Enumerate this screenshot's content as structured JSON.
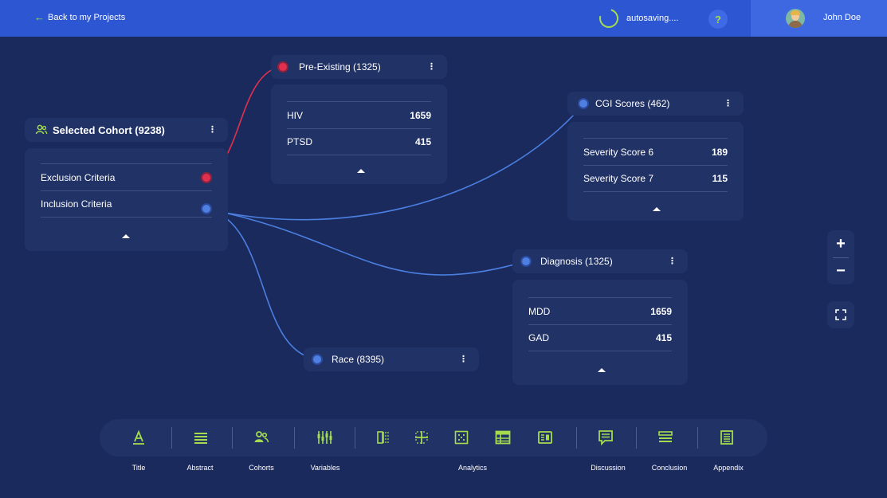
{
  "topbar": {
    "back_label": "Back to my Projects",
    "status_text": "autosaving....",
    "help_label": "?",
    "user_name": "John Doe"
  },
  "colors": {
    "background": "#1b2a5c",
    "topbar": "#2d56d2",
    "card": "#213266",
    "accent": "#a4dc4e",
    "link_blue": "#4a7fe0",
    "link_red": "#e0304e"
  },
  "nodes": {
    "selected_cohort": {
      "title": "Selected Cohort (9238)",
      "rows": [
        "Exclusion Criteria",
        "Inclusion Criteria"
      ]
    },
    "pre_existing": {
      "title": "Pre-Existing (1325)",
      "rows": [
        {
          "label": "HIV",
          "value": "1659"
        },
        {
          "label": "PTSD",
          "value": "415"
        }
      ]
    },
    "cgi_scores": {
      "title": "CGI Scores (462)",
      "rows": [
        {
          "label": "Severity Score 6",
          "value": "189"
        },
        {
          "label": "Severity Score 7",
          "value": "115"
        }
      ]
    },
    "diagnosis": {
      "title": "Diagnosis (1325)",
      "rows": [
        {
          "label": "MDD",
          "value": "1659"
        },
        {
          "label": "GAD",
          "value": "415"
        }
      ]
    },
    "race": {
      "title": "Race (8395)"
    }
  },
  "menu_glyph": "⋮",
  "zoom": {
    "in_label": "+",
    "out_label": "−"
  },
  "toolbar": {
    "items": [
      {
        "label": "Title",
        "icon": "text-format-icon"
      },
      {
        "label": "Abstract",
        "icon": "lines-icon"
      },
      {
        "label": "Cohorts",
        "icon": "people-icon"
      },
      {
        "label": "Variables",
        "icon": "sliders-icon"
      },
      {
        "label": "Analytics",
        "icon": "analytics-icons"
      },
      {
        "label": "Discussion",
        "icon": "comment-icon"
      },
      {
        "label": "Conclusion",
        "icon": "bars-icon"
      },
      {
        "label": "Appendix",
        "icon": "document-icon"
      }
    ]
  }
}
